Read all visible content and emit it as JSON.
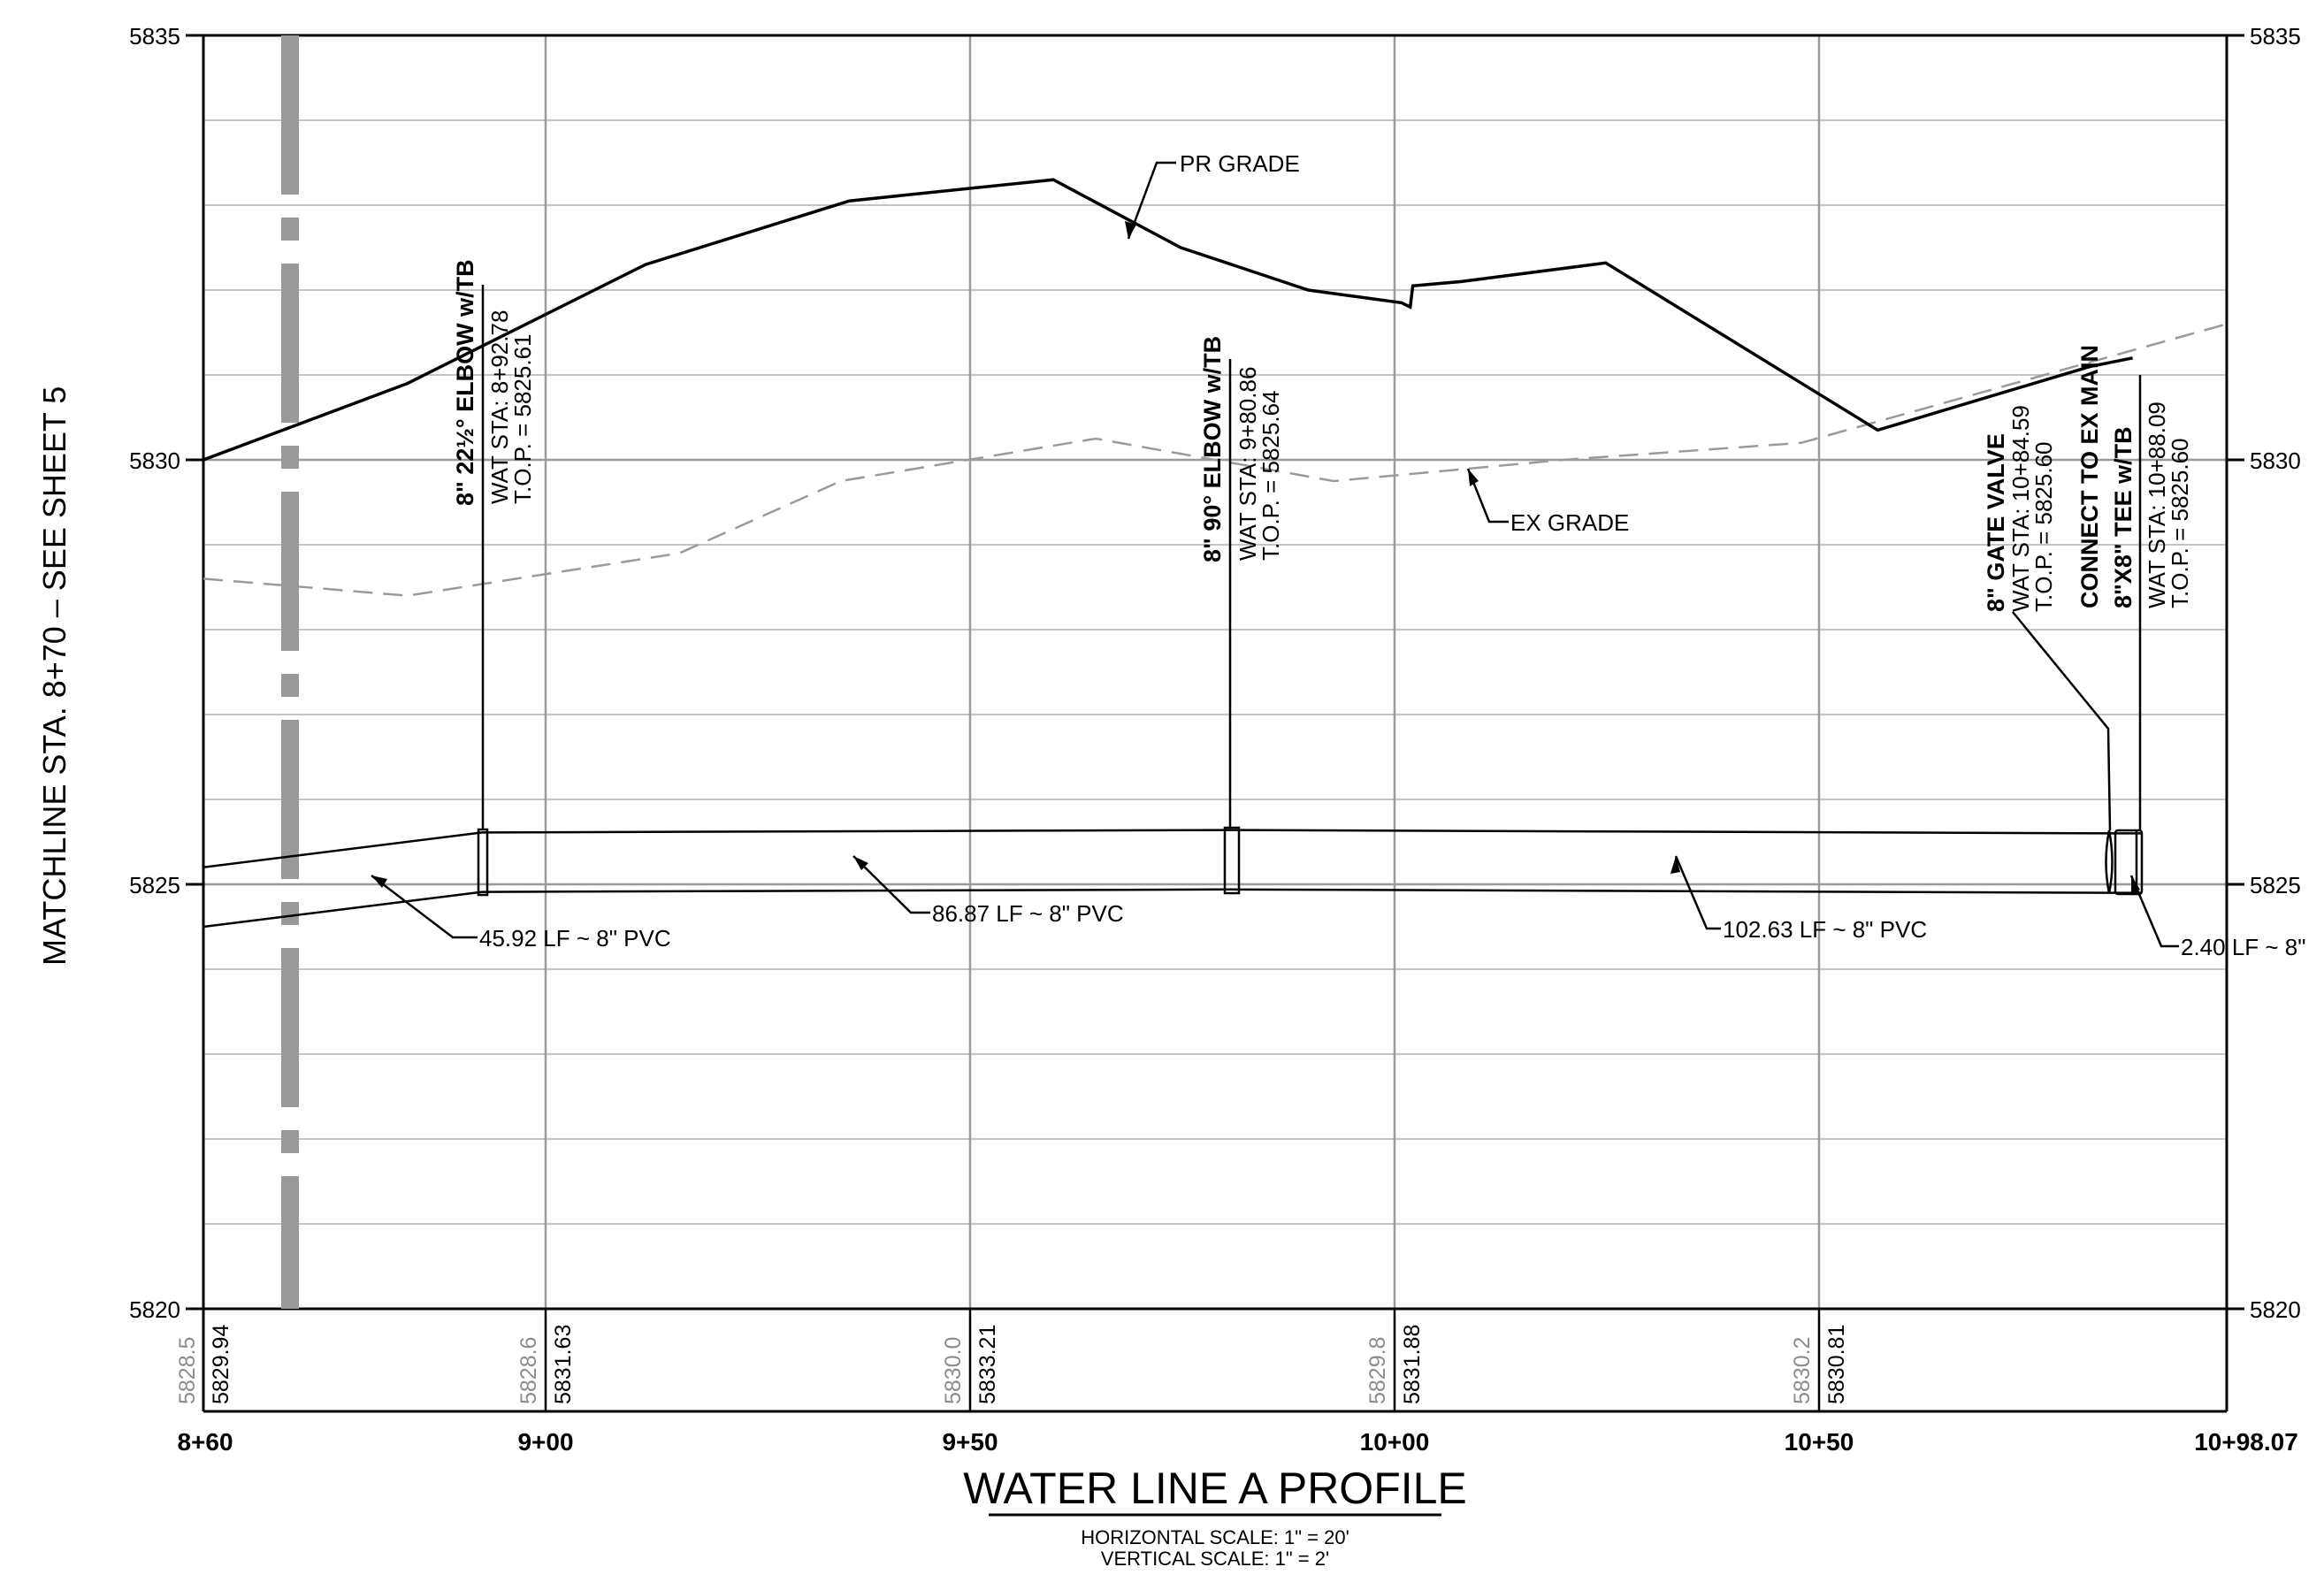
{
  "title": "WATER LINE A PROFILE",
  "scales": {
    "horizontal": "HORIZONTAL SCALE:  1\" = 20'",
    "vertical": "VERTICAL SCALE: 1\" = 2'"
  },
  "matchline": "MATCHLINE STA. 8+70  –  SEE SHEET 5",
  "y_axis": {
    "range": [
      5820,
      5835
    ],
    "labels": [
      "5835",
      "5830",
      "5825",
      "5820"
    ]
  },
  "x_axis": {
    "range": [
      "8+60",
      "10+98.07"
    ],
    "labels": [
      "8+60",
      "9+00",
      "9+50",
      "10+00",
      "10+50",
      "10+98.07"
    ]
  },
  "grade_labels": {
    "proposed": "PR GRADE",
    "existing": "EX GRADE"
  },
  "elevation_pairs": [
    {
      "existing": "5828.5",
      "proposed": "5829.94"
    },
    {
      "existing": "5828.6",
      "proposed": "5831.63"
    },
    {
      "existing": "5830.0",
      "proposed": "5833.21"
    },
    {
      "existing": "5829.8",
      "proposed": "5831.88"
    },
    {
      "existing": "5830.2",
      "proposed": "5830.81"
    }
  ],
  "fittings": [
    {
      "title": "8\" 22½° ELBOW w/TB",
      "sta": "WAT STA:  8+92.78",
      "top": "T.O.P. = 5825.61"
    },
    {
      "title": "8\" 90° ELBOW w/TB",
      "sta": "WAT STA:  9+80.86",
      "top": "T.O.P. = 5825.64"
    },
    {
      "title": "8\" GATE VALVE",
      "sta": "WAT STA:  10+84.59",
      "top": "T.O.P. = 5825.60"
    },
    {
      "title1": "CONNECT TO EX MAIN",
      "title2": "8\"X8\" TEE w/TB",
      "sta": "WAT STA:  10+88.09",
      "top": "T.O.P. = 5825.60"
    }
  ],
  "pipe_segments": [
    "45.92 LF ~ 8\" PVC",
    "86.87 LF ~ 8\" PVC",
    "102.63 LF ~ 8\" PVC",
    "2.40 LF ~ 8\""
  ],
  "chart_data": {
    "type": "line",
    "x_unit": "station (ft)",
    "y_unit": "elevation (ft)",
    "xlim": [
      860,
      1098.07
    ],
    "ylim": [
      5820,
      5835
    ],
    "grid": true,
    "series": [
      {
        "name": "PR GRADE",
        "points": [
          [
            860,
            5830.0
          ],
          [
            884,
            5830.9
          ],
          [
            912,
            5832.3
          ],
          [
            936,
            5833.05
          ],
          [
            960,
            5833.3
          ],
          [
            975,
            5832.5
          ],
          [
            990,
            5832.0
          ],
          [
            1001,
            5831.85
          ],
          [
            1002,
            5831.8
          ],
          [
            1002.3,
            5832.05
          ],
          [
            1008,
            5832.1
          ],
          [
            1025,
            5832.32
          ],
          [
            1057,
            5830.35
          ],
          [
            1082,
            5831.1
          ],
          [
            1087,
            5831.2
          ]
        ]
      },
      {
        "name": "EX GRADE",
        "points": [
          [
            860,
            5828.6
          ],
          [
            884,
            5828.4
          ],
          [
            916,
            5828.9
          ],
          [
            935,
            5829.75
          ],
          [
            965,
            5830.25
          ],
          [
            993,
            5829.75
          ],
          [
            1020,
            5830.0
          ],
          [
            1048,
            5830.2
          ],
          [
            1098.07,
            5831.6
          ]
        ]
      }
    ],
    "pipe": {
      "top": [
        [
          860,
          5825.2
        ],
        [
          892.78,
          5825.61
        ],
        [
          980.86,
          5825.64
        ],
        [
          1084.59,
          5825.6
        ],
        [
          1088.09,
          5825.6
        ]
      ],
      "bottom": [
        [
          860,
          5824.5
        ],
        [
          892.78,
          5824.91
        ],
        [
          980.86,
          5824.94
        ],
        [
          1084.59,
          5824.9
        ],
        [
          1088.09,
          5824.9
        ]
      ]
    }
  }
}
